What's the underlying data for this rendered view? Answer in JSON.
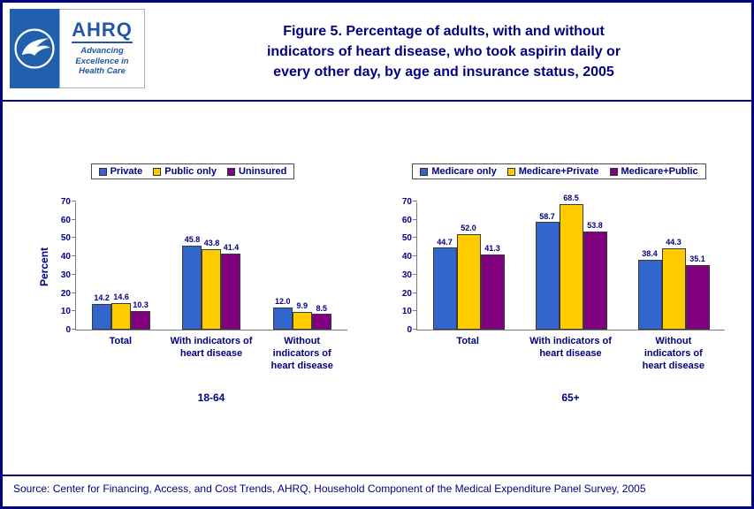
{
  "header": {
    "title_lines": [
      "Figure 5. Percentage of adults, with and without",
      "indicators of heart disease, who took aspirin daily or",
      "every other day, by  age and insurance status, 2005"
    ],
    "logos": {
      "ahrq_acronym": "AHRQ",
      "ahrq_tagline_lines": [
        "Advancing",
        "Excellence in",
        "Health Care"
      ]
    }
  },
  "chart_data": [
    {
      "type": "bar",
      "group_label": "18-64",
      "ylabel": "Percent",
      "ylim": [
        0,
        70
      ],
      "yticks": [
        0,
        10,
        20,
        30,
        40,
        50,
        60,
        70
      ],
      "grid": false,
      "legend_position": "top",
      "categories": [
        "Total",
        "With indicators of heart disease",
        "Without indicators of heart disease"
      ],
      "categories_wrapped": [
        [
          "Total"
        ],
        [
          "With indicators of",
          "heart disease"
        ],
        [
          "Without",
          "indicators of",
          "heart disease"
        ]
      ],
      "series": [
        {
          "name": "Private",
          "color": "#3366CC",
          "values": [
            14.2,
            45.8,
            12.0
          ]
        },
        {
          "name": "Public only",
          "color": "#FFCC00",
          "values": [
            14.6,
            43.8,
            9.9
          ]
        },
        {
          "name": "Uninsured",
          "color": "#800080",
          "values": [
            10.3,
            41.4,
            8.5
          ]
        }
      ]
    },
    {
      "type": "bar",
      "group_label": "65+",
      "ylabel": "",
      "ylim": [
        0,
        70
      ],
      "yticks": [
        0,
        10,
        20,
        30,
        40,
        50,
        60,
        70
      ],
      "grid": false,
      "legend_position": "top",
      "categories": [
        "Total",
        "With indicators of heart disease",
        "Without indicators of heart disease"
      ],
      "categories_wrapped": [
        [
          "Total"
        ],
        [
          "With indicators of",
          "heart disease"
        ],
        [
          "Without",
          "indicators of",
          "heart disease"
        ]
      ],
      "series": [
        {
          "name": "Medicare only",
          "color": "#3366CC",
          "values": [
            44.7,
            58.7,
            38.4
          ]
        },
        {
          "name": "Medicare+Private",
          "color": "#FFCC00",
          "values": [
            52.0,
            68.5,
            44.3
          ]
        },
        {
          "name": "Medicare+Public",
          "color": "#800080",
          "values": [
            41.3,
            53.8,
            35.1
          ]
        }
      ]
    }
  ],
  "footer": {
    "source": "Source: Center for Financing, Access, and Cost Trends, AHRQ, Household Component of the Medical Expenditure Panel Survey, 2005"
  },
  "colors": {
    "navy": "#000080",
    "bar_blue": "#3366CC",
    "bar_yellow": "#FFCC00",
    "bar_purple": "#800080",
    "page_border": "#000080",
    "hhs_logo_blue": "#2160ac"
  }
}
